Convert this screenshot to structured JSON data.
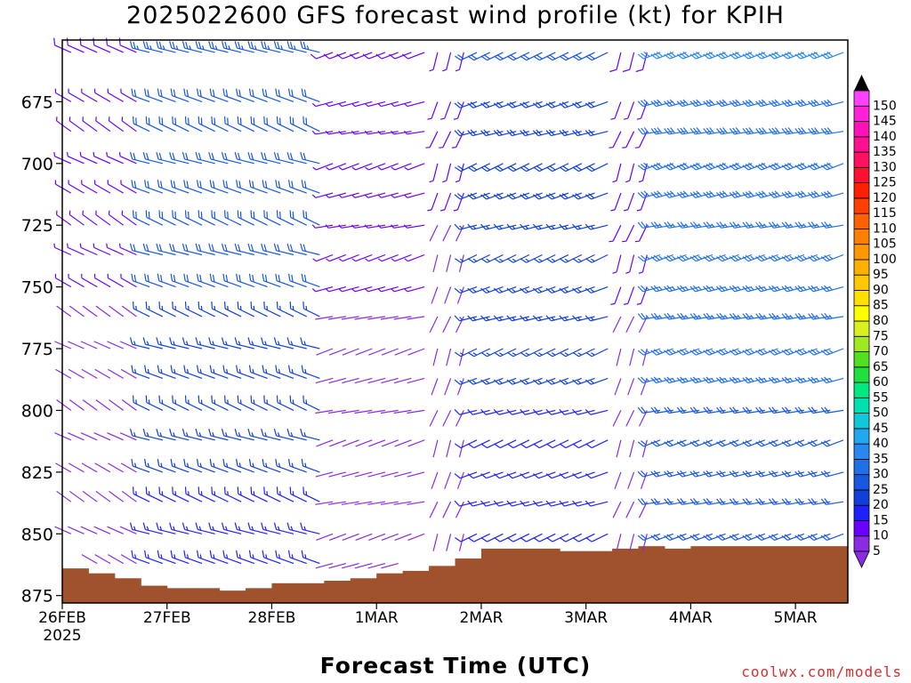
{
  "title": "2025022600 GFS forecast wind profile (kt) for KPIH",
  "xlabel": "Forecast Time (UTC)",
  "credit": "coolwx.com/models",
  "chart_data": {
    "type": "wind-barb profile",
    "y_axis": {
      "quantity": "pressure (hPa)",
      "range": [
        878,
        650
      ],
      "ticks": [
        675,
        700,
        725,
        750,
        775,
        800,
        825,
        850,
        875
      ],
      "inverted": true
    },
    "x_axis": {
      "range": [
        "2025-02-26T00",
        "2025-03-05T12"
      ],
      "ticks": [
        {
          "label": "26FEB",
          "sub": "2025"
        },
        {
          "label": "27FEB",
          "sub": ""
        },
        {
          "label": "28FEB",
          "sub": ""
        },
        {
          "label": "1MAR",
          "sub": ""
        },
        {
          "label": "2MAR",
          "sub": ""
        },
        {
          "label": "3MAR",
          "sub": ""
        },
        {
          "label": "4MAR",
          "sub": ""
        },
        {
          "label": "5MAR",
          "sub": ""
        }
      ]
    },
    "colorbar": {
      "values": [
        5,
        10,
        15,
        20,
        25,
        30,
        35,
        40,
        45,
        50,
        55,
        60,
        65,
        70,
        75,
        80,
        85,
        90,
        95,
        100,
        105,
        110,
        115,
        120,
        125,
        130,
        135,
        140,
        145,
        150
      ],
      "colors": [
        "#8a2be2",
        "#6a00ff",
        "#2020ff",
        "#1040d8",
        "#1858e0",
        "#2070ea",
        "#2888f0",
        "#20a8f0",
        "#10c8d8",
        "#00e0b0",
        "#00e880",
        "#20e040",
        "#50e020",
        "#a0e820",
        "#d8f020",
        "#ffff00",
        "#ffe000",
        "#ffc800",
        "#ffb000",
        "#ff9800",
        "#ff8000",
        "#ff6000",
        "#ff4000",
        "#ff2000",
        "#ff1030",
        "#ff1060",
        "#ff1090",
        "#ff10b8",
        "#ff20d8",
        "#ff40ff"
      ]
    },
    "terrain": {
      "color": "#a0522d",
      "surface_pressure": [
        {
          "x": "2025-02-26T00",
          "p": 864
        },
        {
          "x": "2025-02-26T06",
          "p": 866
        },
        {
          "x": "2025-02-26T12",
          "p": 868
        },
        {
          "x": "2025-02-26T18",
          "p": 871
        },
        {
          "x": "2025-02-27T00",
          "p": 872
        },
        {
          "x": "2025-02-27T06",
          "p": 872
        },
        {
          "x": "2025-02-27T12",
          "p": 873
        },
        {
          "x": "2025-02-27T18",
          "p": 872
        },
        {
          "x": "2025-02-28T00",
          "p": 870
        },
        {
          "x": "2025-02-28T06",
          "p": 870
        },
        {
          "x": "2025-02-28T12",
          "p": 869
        },
        {
          "x": "2025-02-28T18",
          "p": 868
        },
        {
          "x": "2025-03-01T00",
          "p": 866
        },
        {
          "x": "2025-03-01T06",
          "p": 865
        },
        {
          "x": "2025-03-01T12",
          "p": 863
        },
        {
          "x": "2025-03-01T18",
          "p": 860
        },
        {
          "x": "2025-03-02T00",
          "p": 856
        },
        {
          "x": "2025-03-02T06",
          "p": 856
        },
        {
          "x": "2025-03-02T12",
          "p": 856
        },
        {
          "x": "2025-03-02T18",
          "p": 857
        },
        {
          "x": "2025-03-03T00",
          "p": 857
        },
        {
          "x": "2025-03-03T06",
          "p": 856
        },
        {
          "x": "2025-03-03T12",
          "p": 855
        },
        {
          "x": "2025-03-03T18",
          "p": 856
        },
        {
          "x": "2025-03-04T00",
          "p": 855
        },
        {
          "x": "2025-03-04T06",
          "p": 855
        },
        {
          "x": "2025-03-04T12",
          "p": 855
        },
        {
          "x": "2025-03-04T18",
          "p": 855
        },
        {
          "x": "2025-03-05T00",
          "p": 855
        },
        {
          "x": "2025-03-05T06",
          "p": 855
        },
        {
          "x": "2025-03-05T12",
          "p": 855
        }
      ]
    },
    "wind_levels": [
      655,
      675,
      687,
      700,
      712,
      725,
      737,
      750,
      762,
      775,
      787,
      800,
      812,
      825,
      837,
      850,
      862
    ],
    "wind_regimes": [
      {
        "from": "2025-02-26T00",
        "to": "2025-02-26T18",
        "dir": 300,
        "spd": 10
      },
      {
        "from": "2025-02-26T18",
        "to": "2025-02-28T12",
        "dir": 290,
        "spd": 25
      },
      {
        "from": "2025-02-28T12",
        "to": "2025-03-01T12",
        "dir": 255,
        "spd": 10
      },
      {
        "from": "2025-03-01T12",
        "to": "2025-03-01T21",
        "dir": 200,
        "spd": 8
      },
      {
        "from": "2025-03-01T21",
        "to": "2025-03-03T06",
        "dir": 250,
        "spd": 22
      },
      {
        "from": "2025-03-03T06",
        "to": "2025-03-03T15",
        "dir": 200,
        "spd": 10
      },
      {
        "from": "2025-03-03T15",
        "to": "2025-03-05T12",
        "dir": 255,
        "spd": 32
      }
    ]
  }
}
